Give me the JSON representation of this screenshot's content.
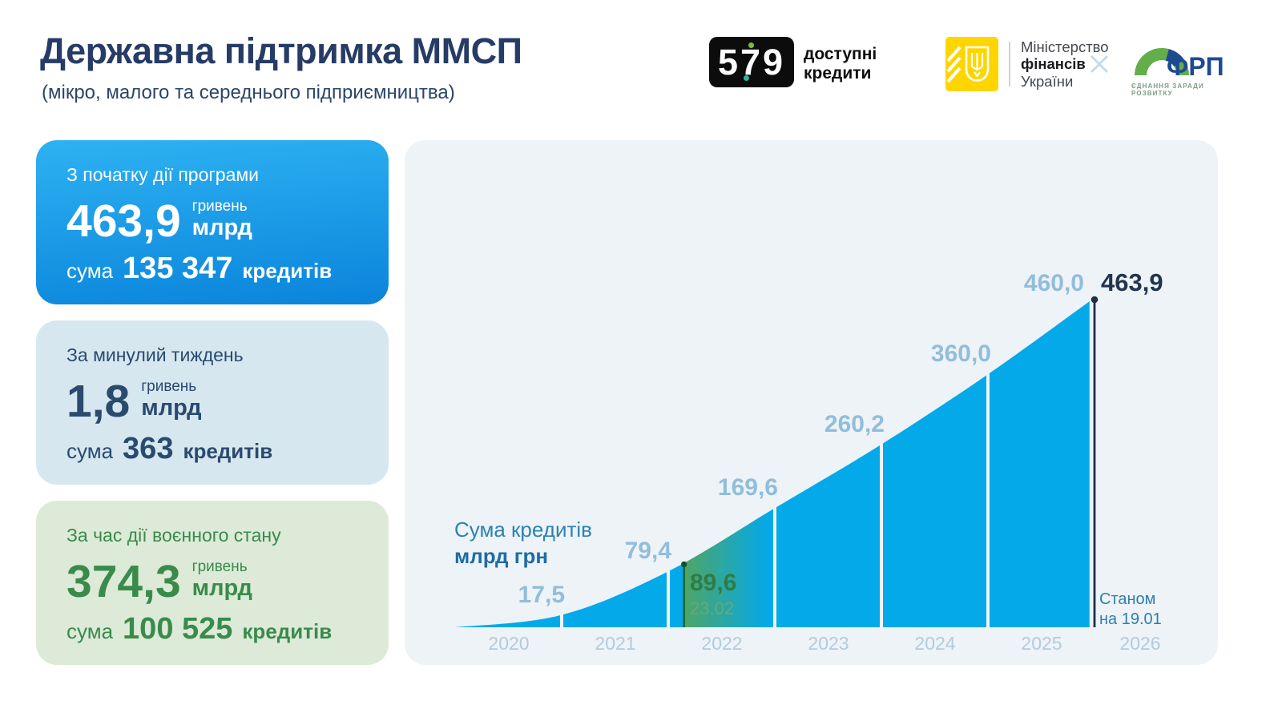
{
  "header": {
    "title": "Державна підтримка ММСП",
    "subtitle": "(мікро, малого та середнього підприємництва)",
    "logo579": {
      "d1": "5",
      "d2": "7",
      "d3": "9",
      "tagline1": "доступні",
      "tagline2": "кредити"
    },
    "minfin": {
      "line1": "Міністерство",
      "line2": "фінансів",
      "line3": "України"
    },
    "collaboration_mark": "×",
    "frp": {
      "name": "ФРП",
      "caption": "ЄДНАННЯ ЗАРАДИ РОЗВИТКУ"
    }
  },
  "cards": [
    {
      "title": "З початку дії програми",
      "amount": "463,9",
      "unit_top": "гривень",
      "unit_bottom": "млрд",
      "sum_label": "сума",
      "count": "135 347",
      "count_suffix": "кредитів"
    },
    {
      "title": "За минулий тиждень",
      "amount": "1,8",
      "unit_top": "гривень",
      "unit_bottom": "млрд",
      "sum_label": "сума",
      "count": "363",
      "count_suffix": "кредитів"
    },
    {
      "title": "За час дії воєнного стану",
      "amount": "374,3",
      "unit_top": "гривень",
      "unit_bottom": "млрд",
      "sum_label": "сума",
      "count": "100 525",
      "count_suffix": "кредитів"
    }
  ],
  "chart": {
    "legend_line1": "Сума кредитів",
    "legend_line2": "млрд грн",
    "asof_line1": "Станом",
    "asof_line2": "на 19.01"
  },
  "chart_data": {
    "type": "area",
    "title": "Сума кредитів, млрд грн",
    "x_years": [
      "2020",
      "2021",
      "2022",
      "2023",
      "2024",
      "2025",
      "2026"
    ],
    "values": [
      17.5,
      79.4,
      169.6,
      260.2,
      360.0,
      460.0
    ],
    "labels": [
      "17,5",
      "79,4",
      "169,6",
      "260,2",
      "360,0",
      "460,0"
    ],
    "final": {
      "label": "463,9",
      "value": 463.9,
      "note": "Станом на 19.01"
    },
    "war_marker": {
      "label": "89,6",
      "value": 89.6,
      "date_label": "23.02"
    },
    "ylim": [
      0,
      480
    ],
    "grid": false,
    "legend_position": "left-middle",
    "colors": {
      "area": "#04a9e9",
      "war_line": "#17672f",
      "war_fade": "#52a55f",
      "current_line": "#1d3049",
      "milestone_text": "#92bddb",
      "panel_bg": "#edf3f7"
    }
  }
}
